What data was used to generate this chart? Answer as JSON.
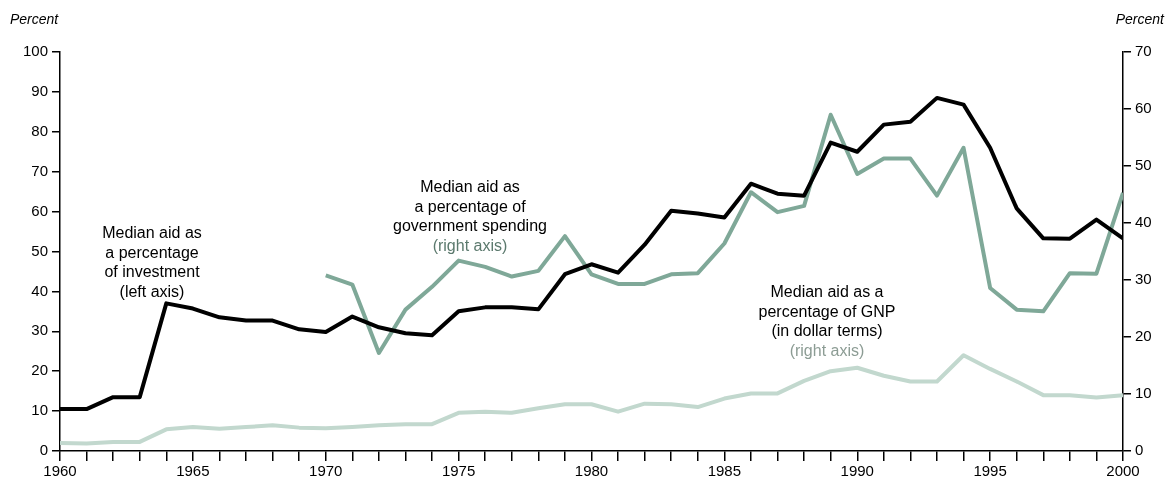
{
  "chart_data": {
    "type": "line",
    "ylabel": "Percent",
    "y2label": "Percent",
    "xlim": [
      1960,
      2000
    ],
    "xticks": [
      1960,
      {
        "value": 1961,
        "label": null
      },
      {
        "value": 1962,
        "label": null
      },
      {
        "value": 1963,
        "label": null
      },
      {
        "value": 1964,
        "label": null
      },
      1965,
      {
        "value": 1966,
        "label": null
      },
      {
        "value": 1967,
        "label": null
      },
      {
        "value": 1968,
        "label": null
      },
      {
        "value": 1969,
        "label": null
      },
      1970,
      {
        "value": 1971,
        "label": null
      },
      {
        "value": 1972,
        "label": null
      },
      {
        "value": 1973,
        "label": null
      },
      {
        "value": 1974,
        "label": null
      },
      1975,
      {
        "value": 1976,
        "label": null
      },
      {
        "value": 1977,
        "label": null
      },
      {
        "value": 1978,
        "label": null
      },
      {
        "value": 1979,
        "label": null
      },
      1980,
      {
        "value": 1981,
        "label": null
      },
      {
        "value": 1982,
        "label": null
      },
      {
        "value": 1983,
        "label": null
      },
      {
        "value": 1984,
        "label": null
      },
      1985,
      {
        "value": 1986,
        "label": null
      },
      {
        "value": 1987,
        "label": null
      },
      {
        "value": 1988,
        "label": null
      },
      {
        "value": 1989,
        "label": null
      },
      1990,
      {
        "value": 1991,
        "label": null
      },
      {
        "value": 1992,
        "label": null
      },
      {
        "value": 1993,
        "label": null
      },
      {
        "value": 1994,
        "label": null
      },
      1995,
      {
        "value": 1996,
        "label": null
      },
      {
        "value": 1997,
        "label": null
      },
      {
        "value": 1998,
        "label": null
      },
      {
        "value": 1999,
        "label": null
      },
      2000
    ],
    "ylim": [
      0,
      100
    ],
    "yticks": [
      0,
      10,
      20,
      30,
      40,
      50,
      60,
      70,
      80,
      90,
      100
    ],
    "y2lim": [
      0,
      70
    ],
    "y2ticks": [
      0,
      10,
      20,
      30,
      40,
      50,
      60,
      70
    ],
    "grid": false,
    "legend": false,
    "marker": "none",
    "line_style": "solid",
    "series": [
      {
        "name": "Median aid as\na percentage\nof investment\n(left axis)",
        "color": "#000000",
        "x": [
          1960,
          1961,
          1962,
          1963,
          1964,
          1965,
          1966,
          1967,
          1968,
          1969,
          1970,
          1971,
          1972,
          1973,
          1974,
          1975,
          1976,
          1977,
          1978,
          1979,
          1980,
          1981,
          1982,
          1983,
          1984,
          1985,
          1986,
          1987,
          1988,
          1989,
          1990,
          1991,
          1992,
          1993,
          1994,
          1995,
          1996,
          1997,
          1998,
          1999,
          2000
        ],
        "values": [
          10.5,
          10.5,
          13.5,
          13.5,
          37,
          35.7,
          33.5,
          32.7,
          32.7,
          30.5,
          29.8,
          33.7,
          31,
          29.5,
          29,
          35,
          36,
          36,
          35.5,
          44.3,
          46.8,
          44.7,
          51.7,
          60.2,
          59.5,
          58.5,
          67,
          64.5,
          64,
          77.3,
          75,
          81.8,
          82.5,
          88.5,
          86.8,
          76,
          60.8,
          53.3,
          53.2,
          58,
          53.3
        ]
      },
      {
        "name": "Median aid as\na percentage of\ngovernment spending\n(right axis)",
        "color": "#7fa898",
        "axis": "y2",
        "x": [
          1970,
          1971,
          1972,
          1973,
          1974,
          1975,
          1976,
          1977,
          1978,
          1979,
          1980,
          1981,
          1982,
          1983,
          1984,
          1985,
          1986,
          1987,
          1988,
          1989,
          1990,
          1991,
          1992,
          1993,
          1994,
          1995,
          1996,
          1997,
          1998,
          1999,
          2000
        ],
        "values": [
          30.8,
          29.2,
          17.2,
          24.8,
          28.8,
          33.4,
          32.3,
          30.6,
          31.6,
          37.7,
          31,
          29.3,
          29.3,
          31,
          31.2,
          36.4,
          45.4,
          41.9,
          43,
          59,
          48.6,
          51.3,
          51.3,
          44.8,
          53.2,
          28.6,
          24.8,
          24.5,
          31.2,
          31.1,
          45.3
        ]
      },
      {
        "name": "Median aid as a\npercentage of GNP\n(in dollar terms)\n(right axis)",
        "color": "#c2d8ce",
        "axis": "y2",
        "x": [
          1960,
          1961,
          1962,
          1963,
          1964,
          1965,
          1966,
          1967,
          1968,
          1969,
          1970,
          1971,
          1972,
          1973,
          1974,
          1975,
          1976,
          1977,
          1978,
          1979,
          1980,
          1981,
          1982,
          1983,
          1984,
          1985,
          1986,
          1987,
          1988,
          1989,
          1990,
          1991,
          1992,
          1993,
          1994,
          1995,
          1996,
          1997,
          1998,
          1999,
          2000
        ],
        "values": [
          1.4,
          1.3,
          1.6,
          1.6,
          3.8,
          4.2,
          3.9,
          4.2,
          4.5,
          4.1,
          4.0,
          4.2,
          4.5,
          4.7,
          4.7,
          6.7,
          6.9,
          6.7,
          7.5,
          8.2,
          8.2,
          6.9,
          8.3,
          8.2,
          7.7,
          9.2,
          10.1,
          10.1,
          12.3,
          14.0,
          14.6,
          13.2,
          12.2,
          12.2,
          16.8,
          14.4,
          12.2,
          9.8,
          9.8,
          9.4,
          9.8
        ]
      }
    ]
  }
}
